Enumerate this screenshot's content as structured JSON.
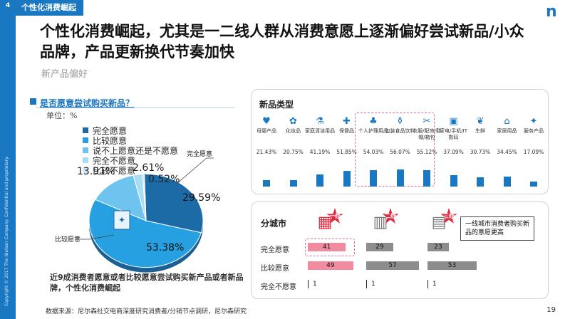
{
  "page": {
    "number": "4",
    "page_num": "19"
  },
  "tab_title": "个性化消费崛起",
  "headline": "个性化消费崛起，尤其是一二线人群从消费意愿上逐渐偏好尝试新品/小众品牌，产品更新换代节奏加快",
  "subheading": "新产品偏好",
  "question": "是否愿意尝试购买新品？",
  "unit": "单位：%",
  "conclusion": "近9成消费者愿意或者比较愿意尝试购买新产品或者新品牌，个性化消费崛起",
  "source": "数据来源：尼尔森社交电商深度研究消费者/分销节点调研，尼尔森研究",
  "copyright": "Copyright © 2017 The Nielsen Company. Confidential and proprietary.",
  "chart_data": [
    {
      "type": "pie",
      "title": "是否愿意尝试购买新品？",
      "unit": "%",
      "slices": [
        {
          "name": "完全愿意",
          "value": 29.59,
          "color": "#1c6aa6",
          "label": "29.59%"
        },
        {
          "name": "比较愿意",
          "value": 53.38,
          "color": "#26a0e0",
          "label": "53.38%"
        },
        {
          "name": "说不上愿意还是不愿意",
          "value": 13.91,
          "color": "#6fc3ef",
          "label": "13.91%"
        },
        {
          "name": "比较不愿意",
          "value": 2.61,
          "color": "#a9dcf6",
          "label": "2.61%"
        },
        {
          "name": "完全不愿意",
          "value": 0.52,
          "color": "#cfe9f8",
          "label": "0.52%"
        }
      ],
      "callouts": {
        "strong": "完全愿意",
        "fairly": "比较愿意"
      }
    },
    {
      "type": "bar",
      "title": "新品类型",
      "categories": [
        "母婴产品",
        "化妆品",
        "家庭清洁用品",
        "保健品",
        "个人护理用品",
        "包装食品饮料",
        "衣服/配饰/鞋帽/箱包",
        "家电/手机/IT数码",
        "生鲜",
        "家居用品",
        "服务产品"
      ],
      "values": [
        21.43,
        20.75,
        41.19,
        51.85,
        54.03,
        56.07,
        55.12,
        37.09,
        30.73,
        34.45,
        17.09
      ],
      "labels": [
        "21.43%",
        "20.75%",
        "41.19%",
        "51.85%",
        "54.03%",
        "56.07%",
        "55.12%",
        "37.09%",
        "30.73%",
        "34.45%",
        "17.09%"
      ],
      "highlighted": [
        "个人护理用品",
        "包装食品饮料",
        "衣服/配饰/鞋帽/箱包"
      ]
    },
    {
      "type": "bar",
      "title": "分城市",
      "cities": [
        "一线",
        "二线",
        "三线"
      ],
      "rows": [
        {
          "label": "完全愿意",
          "values": [
            41,
            29,
            23
          ]
        },
        {
          "label": "比较愿意",
          "values": [
            49,
            57,
            53
          ]
        },
        {
          "label": "完全不愿意",
          "values": [
            1,
            1,
            1
          ]
        }
      ],
      "note": "一线城市消费者购买新品的意愿更高"
    }
  ],
  "colors": {
    "accent": "#1a78c2",
    "highlight": "#e0283d",
    "pink": "#f28aa0",
    "grey": "#8d8d8d"
  },
  "icons": {
    "logo": "nielsen-logo",
    "building": "building-icon"
  }
}
